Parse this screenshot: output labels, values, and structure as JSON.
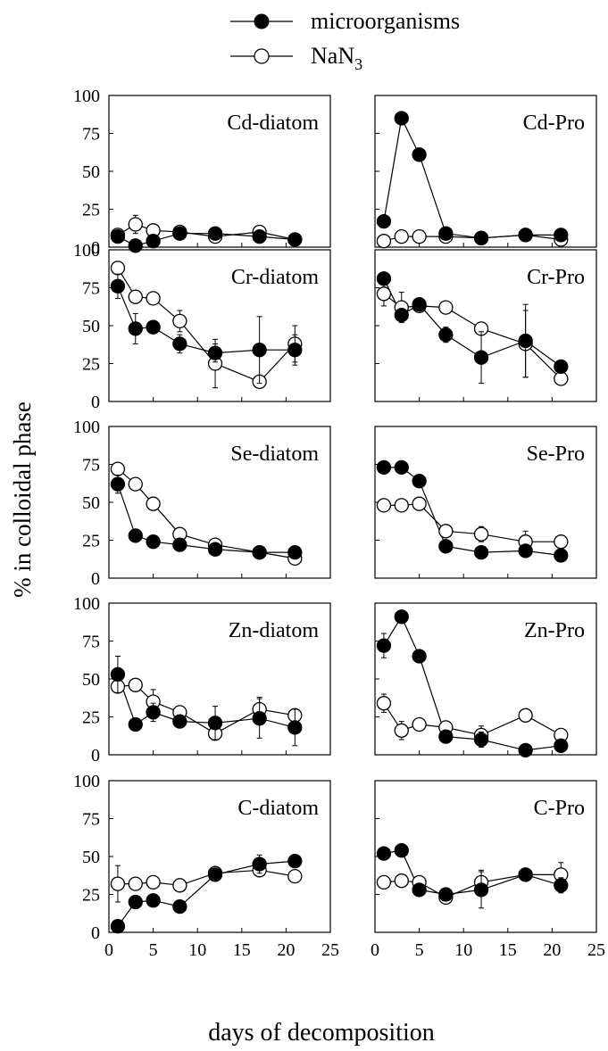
{
  "legend": {
    "filled_label": "microorganisms",
    "open_label_base": "NaN",
    "open_label_sub": "3"
  },
  "ylabel": "% in colloidal phase",
  "xlabel": "days of decomposition",
  "colors": {
    "ink": "#000000",
    "open_fill": "#ffffff"
  },
  "chart_data": [
    {
      "type": "scatter",
      "title": "Cd-diatom",
      "panel_col": 0,
      "panel_row": 0,
      "x": [
        1,
        3,
        5,
        8,
        12,
        17,
        21
      ],
      "xlim": [
        0,
        25
      ],
      "ylim": [
        0,
        100
      ],
      "xticks": [
        0,
        5,
        10,
        15,
        20,
        25
      ],
      "yticks": [
        0,
        25,
        50,
        75,
        100
      ],
      "series": [
        {
          "name": "microorganisms",
          "marker": "filled",
          "values": [
            7,
            1,
            4,
            9,
            9,
            7,
            5
          ],
          "err": [
            0,
            0,
            0,
            0,
            0,
            0,
            0
          ]
        },
        {
          "name": "NaN3",
          "marker": "open",
          "values": [
            8,
            15,
            11,
            10,
            7,
            10,
            5
          ],
          "err": [
            0,
            6,
            0,
            0,
            0,
            0,
            0
          ]
        }
      ]
    },
    {
      "type": "scatter",
      "title": "Cd-Pro",
      "panel_col": 1,
      "panel_row": 0,
      "x": [
        1,
        3,
        5,
        8,
        12,
        17,
        21
      ],
      "xlim": [
        0,
        25
      ],
      "ylim": [
        0,
        100
      ],
      "xticks": [
        0,
        5,
        10,
        15,
        20,
        25
      ],
      "yticks": [
        0,
        25,
        50,
        75,
        100
      ],
      "series": [
        {
          "name": "microorganisms",
          "marker": "filled",
          "values": [
            17,
            85,
            61,
            9,
            6,
            8,
            8
          ],
          "err": [
            0,
            0,
            0,
            0,
            0,
            0,
            0
          ]
        },
        {
          "name": "NaN3",
          "marker": "open",
          "values": [
            4,
            7,
            7,
            7,
            6,
            8,
            5
          ],
          "err": [
            0,
            0,
            0,
            0,
            0,
            0,
            0
          ]
        }
      ]
    },
    {
      "type": "scatter",
      "title": "Cr-diatom",
      "panel_col": 0,
      "panel_row": 1,
      "x": [
        1,
        3,
        5,
        8,
        12,
        17,
        21
      ],
      "xlim": [
        0,
        25
      ],
      "ylim": [
        0,
        100
      ],
      "xticks": [
        0,
        5,
        10,
        15,
        20,
        25
      ],
      "yticks": [
        0,
        25,
        50,
        75,
        100
      ],
      "series": [
        {
          "name": "microorganisms",
          "marker": "filled",
          "values": [
            76,
            48,
            49,
            38,
            32,
            34,
            34
          ],
          "err": [
            8,
            10,
            0,
            6,
            6,
            22,
            10
          ]
        },
        {
          "name": "NaN3",
          "marker": "open",
          "values": [
            88,
            69,
            68,
            53,
            25,
            13,
            38
          ],
          "err": [
            0,
            0,
            0,
            7,
            16,
            0,
            12
          ]
        }
      ]
    },
    {
      "type": "scatter",
      "title": "Cr-Pro",
      "panel_col": 1,
      "panel_row": 1,
      "x": [
        1,
        3,
        5,
        8,
        12,
        17,
        21
      ],
      "xlim": [
        0,
        25
      ],
      "ylim": [
        0,
        100
      ],
      "xticks": [
        0,
        5,
        10,
        15,
        20,
        25
      ],
      "yticks": [
        0,
        25,
        50,
        75,
        100
      ],
      "series": [
        {
          "name": "microorganisms",
          "marker": "filled",
          "values": [
            81,
            57,
            64,
            44,
            29,
            40,
            23
          ],
          "err": [
            0,
            4,
            0,
            5,
            17,
            24,
            0
          ]
        },
        {
          "name": "NaN3",
          "marker": "open",
          "values": [
            71,
            62,
            63,
            62,
            48,
            38,
            15
          ],
          "err": [
            8,
            10,
            0,
            0,
            0,
            22,
            0
          ]
        }
      ]
    },
    {
      "type": "scatter",
      "title": "Se-diatom",
      "panel_col": 0,
      "panel_row": 2,
      "x": [
        1,
        3,
        5,
        8,
        12,
        17,
        21
      ],
      "xlim": [
        0,
        25
      ],
      "ylim": [
        0,
        100
      ],
      "xticks": [
        0,
        5,
        10,
        15,
        20,
        25
      ],
      "yticks": [
        0,
        25,
        50,
        75,
        100
      ],
      "series": [
        {
          "name": "microorganisms",
          "marker": "filled",
          "values": [
            62,
            28,
            24,
            22,
            19,
            17,
            17
          ],
          "err": [
            6,
            0,
            0,
            0,
            0,
            0,
            0
          ]
        },
        {
          "name": "NaN3",
          "marker": "open",
          "values": [
            72,
            62,
            49,
            29,
            22,
            17,
            13
          ],
          "err": [
            0,
            0,
            0,
            0,
            0,
            0,
            0
          ]
        }
      ]
    },
    {
      "type": "scatter",
      "title": "Se-Pro",
      "panel_col": 1,
      "panel_row": 2,
      "x": [
        1,
        3,
        5,
        8,
        12,
        17,
        21
      ],
      "xlim": [
        0,
        25
      ],
      "ylim": [
        0,
        100
      ],
      "xticks": [
        0,
        5,
        10,
        15,
        20,
        25
      ],
      "yticks": [
        0,
        25,
        50,
        75,
        100
      ],
      "series": [
        {
          "name": "microorganisms",
          "marker": "filled",
          "values": [
            73,
            73,
            64,
            21,
            17,
            18,
            15
          ],
          "err": [
            0,
            0,
            0,
            0,
            0,
            0,
            0
          ]
        },
        {
          "name": "NaN3",
          "marker": "open",
          "values": [
            48,
            48,
            49,
            31,
            29,
            24,
            24
          ],
          "err": [
            0,
            0,
            0,
            0,
            5,
            7,
            0
          ]
        }
      ]
    },
    {
      "type": "scatter",
      "title": "Zn-diatom",
      "panel_col": 0,
      "panel_row": 3,
      "x": [
        1,
        3,
        5,
        8,
        12,
        17,
        21
      ],
      "xlim": [
        0,
        25
      ],
      "ylim": [
        0,
        100
      ],
      "xticks": [
        0,
        5,
        10,
        15,
        20,
        25
      ],
      "yticks": [
        0,
        25,
        50,
        75,
        100
      ],
      "series": [
        {
          "name": "microorganisms",
          "marker": "filled",
          "values": [
            53,
            20,
            28,
            22,
            21,
            24,
            18
          ],
          "err": [
            12,
            0,
            6,
            0,
            11,
            13,
            12
          ]
        },
        {
          "name": "NaN3",
          "marker": "open",
          "values": [
            45,
            46,
            35,
            28,
            14,
            30,
            26
          ],
          "err": [
            0,
            0,
            8,
            0,
            0,
            8,
            0
          ]
        }
      ]
    },
    {
      "type": "scatter",
      "title": "Zn-Pro",
      "panel_col": 1,
      "panel_row": 3,
      "x": [
        1,
        3,
        5,
        8,
        12,
        17,
        21
      ],
      "xlim": [
        0,
        25
      ],
      "ylim": [
        0,
        100
      ],
      "xticks": [
        0,
        5,
        10,
        15,
        20,
        25
      ],
      "yticks": [
        0,
        25,
        50,
        75,
        100
      ],
      "series": [
        {
          "name": "microorganisms",
          "marker": "filled",
          "values": [
            72,
            91,
            65,
            12,
            10,
            3,
            6
          ],
          "err": [
            8,
            0,
            0,
            0,
            5,
            0,
            0
          ]
        },
        {
          "name": "NaN3",
          "marker": "open",
          "values": [
            34,
            16,
            20,
            18,
            13,
            26,
            13
          ],
          "err": [
            6,
            6,
            0,
            0,
            6,
            0,
            0
          ]
        }
      ]
    },
    {
      "type": "scatter",
      "title": "C-diatom",
      "panel_col": 0,
      "panel_row": 4,
      "x": [
        1,
        3,
        5,
        8,
        12,
        17,
        21
      ],
      "xlim": [
        0,
        25
      ],
      "ylim": [
        0,
        100
      ],
      "xticks": [
        0,
        5,
        10,
        15,
        20,
        25
      ],
      "yticks": [
        0,
        25,
        50,
        75,
        100
      ],
      "series": [
        {
          "name": "microorganisms",
          "marker": "filled",
          "values": [
            4,
            20,
            21,
            17,
            38,
            45,
            47
          ],
          "err": [
            0,
            0,
            0,
            0,
            4,
            6,
            0
          ]
        },
        {
          "name": "NaN3",
          "marker": "open",
          "values": [
            32,
            32,
            33,
            31,
            39,
            41,
            37
          ],
          "err": [
            12,
            0,
            0,
            0,
            0,
            0,
            0
          ]
        }
      ]
    },
    {
      "type": "scatter",
      "title": "C-Pro",
      "panel_col": 1,
      "panel_row": 4,
      "x": [
        1,
        3,
        5,
        8,
        12,
        17,
        21
      ],
      "xlim": [
        0,
        25
      ],
      "ylim": [
        0,
        100
      ],
      "xticks": [
        0,
        5,
        10,
        15,
        20,
        25
      ],
      "yticks": [
        0,
        25,
        50,
        75,
        100
      ],
      "series": [
        {
          "name": "microorganisms",
          "marker": "filled",
          "values": [
            52,
            54,
            28,
            25,
            28,
            38,
            31
          ],
          "err": [
            0,
            0,
            0,
            0,
            12,
            0,
            5
          ]
        },
        {
          "name": "NaN3",
          "marker": "open",
          "values": [
            33,
            34,
            33,
            23,
            33,
            38,
            38
          ],
          "err": [
            0,
            0,
            0,
            0,
            8,
            0,
            8
          ]
        }
      ]
    }
  ]
}
